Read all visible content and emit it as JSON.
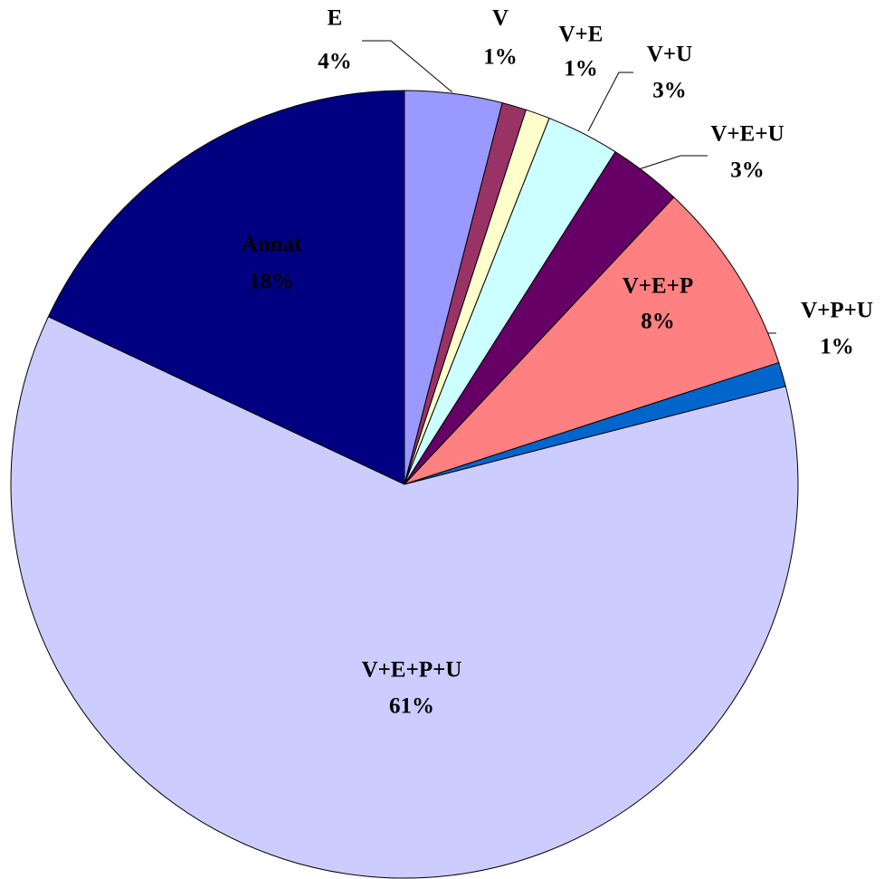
{
  "chart_data": {
    "type": "pie",
    "categories": [
      "E",
      "V",
      "V+E",
      "V+U",
      "V+E+U",
      "V+E+P",
      "V+P+U",
      "V+E+P+U",
      "Annat"
    ],
    "values": [
      4,
      1,
      1,
      3,
      3,
      8,
      1,
      61,
      18
    ],
    "value_labels": [
      "4%",
      "1%",
      "1%",
      "3%",
      "3%",
      "8%",
      "1%",
      "61%",
      "18%"
    ],
    "colors": [
      "#9999ff",
      "#993366",
      "#ffffcc",
      "#ccffff",
      "#660066",
      "#ff8080",
      "#0066cc",
      "#ccccff",
      "#000080"
    ]
  }
}
